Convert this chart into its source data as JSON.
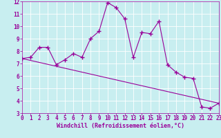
{
  "xlabel": "Windchill (Refroidissement éolien,°C)",
  "line1_x": [
    0,
    1,
    2,
    3,
    4,
    5,
    6,
    7,
    8,
    9,
    10,
    11,
    12,
    13,
    14,
    15,
    16,
    17,
    18,
    19,
    20,
    21,
    22,
    23
  ],
  "line1_y": [
    7.4,
    7.5,
    8.3,
    8.3,
    6.9,
    7.3,
    7.8,
    7.5,
    9.0,
    9.6,
    11.9,
    11.5,
    10.6,
    7.5,
    9.5,
    9.4,
    10.4,
    6.9,
    6.3,
    5.9,
    5.8,
    3.5,
    3.4,
    3.8
  ],
  "line2_x": [
    0,
    23
  ],
  "line2_y": [
    7.4,
    3.8
  ],
  "line_color": "#990099",
  "bg_color": "#c8eef0",
  "grid_color": "#ffffff",
  "xlim": [
    0,
    23
  ],
  "ylim": [
    3,
    12
  ],
  "xticks": [
    0,
    1,
    2,
    3,
    4,
    5,
    6,
    7,
    8,
    9,
    10,
    11,
    12,
    13,
    14,
    15,
    16,
    17,
    18,
    19,
    20,
    21,
    22,
    23
  ],
  "yticks": [
    3,
    4,
    5,
    6,
    7,
    8,
    9,
    10,
    11,
    12
  ],
  "marker": "+",
  "markersize": 4,
  "markeredgewidth": 1.0,
  "linewidth": 0.8,
  "tick_fontsize": 5.5,
  "xlabel_fontsize": 6.0
}
